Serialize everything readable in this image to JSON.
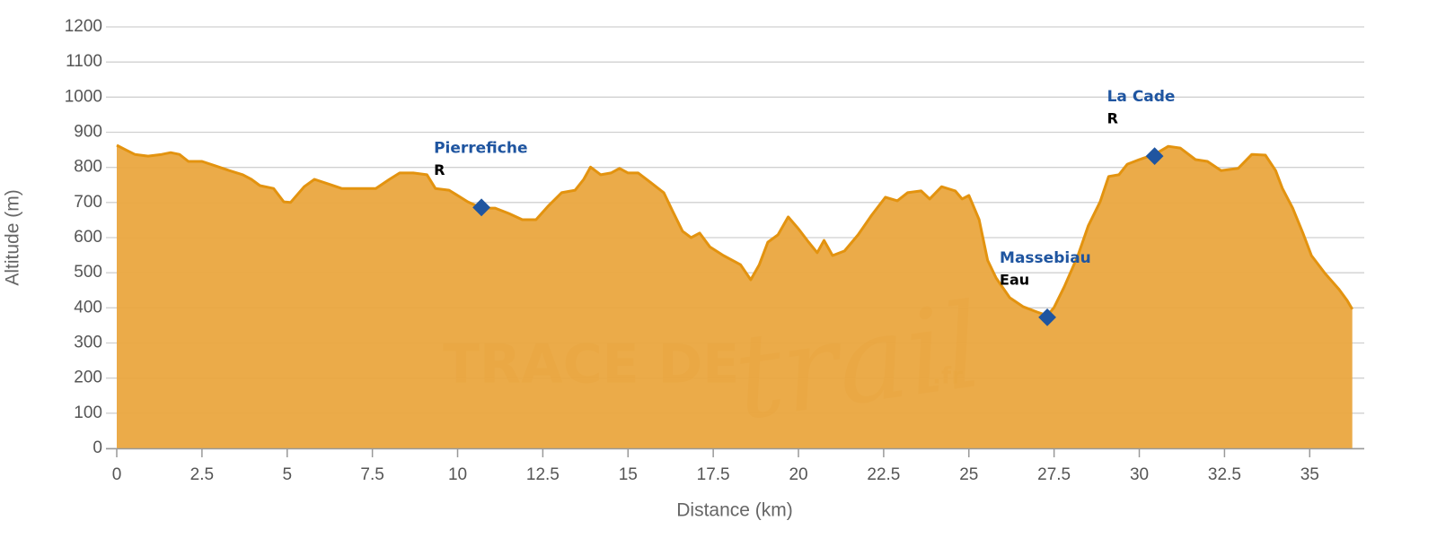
{
  "chart_data": {
    "type": "area",
    "x_label": "Distance (km)",
    "y_label": "Altitude (m)",
    "color": "#e3930f",
    "fill": "#eaa63f",
    "marker_color": "#1f55a0",
    "grid": true,
    "xlim": [
      0,
      36.6
    ],
    "ylim": [
      0,
      1200
    ],
    "xticks": [
      0,
      2.5,
      5,
      7.5,
      10,
      12.5,
      15,
      17.5,
      20,
      22.5,
      25,
      27.5,
      30,
      32.5,
      35
    ],
    "yticks": [
      0,
      100,
      200,
      300,
      400,
      500,
      600,
      700,
      800,
      900,
      1000,
      1100,
      1200
    ],
    "x": [
      0,
      0.26,
      0.53,
      0.92,
      1.32,
      1.58,
      1.84,
      2.1,
      2.5,
      2.9,
      3.3,
      3.7,
      3.95,
      4.2,
      4.6,
      4.9,
      5.1,
      5.5,
      5.8,
      6.2,
      6.6,
      7.1,
      7.6,
      8.0,
      8.3,
      8.7,
      9.1,
      9.35,
      9.75,
      10.3,
      10.7,
      11.1,
      11.5,
      11.9,
      12.3,
      12.65,
      13.05,
      13.45,
      13.7,
      13.9,
      14.2,
      14.5,
      14.75,
      15.0,
      15.3,
      15.65,
      16.05,
      16.3,
      16.6,
      16.85,
      17.1,
      17.4,
      17.8,
      18.05,
      18.3,
      18.6,
      18.85,
      19.1,
      19.4,
      19.7,
      20.0,
      20.3,
      20.55,
      20.75,
      21.0,
      21.35,
      21.75,
      22.15,
      22.55,
      22.9,
      23.2,
      23.6,
      23.85,
      24.2,
      24.6,
      24.8,
      25.0,
      25.3,
      25.55,
      25.8,
      26.2,
      26.6,
      27.0,
      27.3,
      27.5,
      27.8,
      28.2,
      28.5,
      28.85,
      29.1,
      29.4,
      29.65,
      30.0,
      30.45,
      30.85,
      31.2,
      31.65,
      32.0,
      32.4,
      32.9,
      33.3,
      33.7,
      34.0,
      34.2,
      34.5,
      34.8,
      35.05,
      35.45,
      35.85,
      36.1,
      36.25
    ],
    "values": [
      863,
      850,
      837,
      832,
      837,
      842,
      837,
      817,
      817,
      804,
      791,
      779,
      766,
      748,
      740,
      702,
      700,
      745,
      766,
      753,
      740,
      740,
      740,
      766,
      784,
      784,
      779,
      740,
      735,
      702,
      684,
      684,
      669,
      651,
      651,
      689,
      728,
      735,
      766,
      801,
      779,
      784,
      797,
      784,
      784,
      758,
      728,
      677,
      618,
      600,
      613,
      574,
      549,
      536,
      523,
      480,
      523,
      587,
      608,
      659,
      625,
      587,
      557,
      592,
      549,
      562,
      608,
      664,
      715,
      705,
      728,
      733,
      710,
      745,
      733,
      710,
      720,
      651,
      536,
      485,
      429,
      403,
      388,
      378,
      401,
      460,
      549,
      633,
      702,
      774,
      779,
      809,
      822,
      837,
      860,
      855,
      822,
      817,
      791,
      797,
      837,
      835,
      791,
      740,
      684,
      613,
      549,
      498,
      454,
      421,
      396
    ],
    "waypoints": [
      {
        "name": "Pierrefiche",
        "note": "R",
        "x": 10.7,
        "y": 686
      },
      {
        "name": "Massebiau",
        "note": "Eau",
        "x": 27.3,
        "y": 373
      },
      {
        "name": "La Cade",
        "note": "R",
        "x": 30.45,
        "y": 832
      }
    ],
    "watermark": {
      "text": "TRACE DE",
      "script": "trail",
      "suffix": ".fr"
    }
  }
}
